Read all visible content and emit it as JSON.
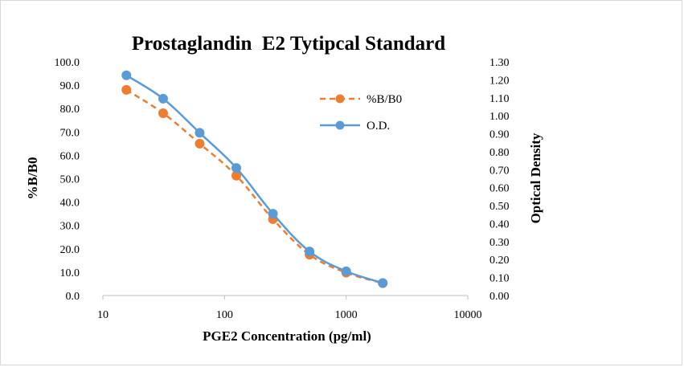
{
  "chart_data": {
    "type": "line",
    "title": "Prostaglandin  E2 Tytipcal Standard",
    "xlabel": "PGE2 Concentration (pg/ml)",
    "ylabel": "%B/B0",
    "y2label": "Optical Density",
    "xscale": "log",
    "xlim": [
      10,
      10000
    ],
    "ylim": [
      0,
      100
    ],
    "y2lim": [
      0,
      1.3
    ],
    "x_ticks": [
      "10",
      "100",
      "1000",
      "10000"
    ],
    "y_ticks": [
      "0.0",
      "10.0",
      "20.0",
      "30.0",
      "40.0",
      "50.0",
      "60.0",
      "70.0",
      "80.0",
      "90.0",
      "100.0"
    ],
    "y2_ticks": [
      "0.00",
      "0.10",
      "0.20",
      "0.30",
      "0.40",
      "0.50",
      "0.60",
      "0.70",
      "0.80",
      "0.90",
      "1.00",
      "1.10",
      "1.20",
      "1.30"
    ],
    "x": [
      15.6,
      31.3,
      62.5,
      125,
      250,
      500,
      1000,
      2000
    ],
    "series": [
      {
        "name": "%B/B0",
        "axis": "left",
        "style": "dashed",
        "color": "#ED7D31",
        "values": [
          88.0,
          78.0,
          65.0,
          51.3,
          32.7,
          17.5,
          9.8,
          5.3
        ]
      },
      {
        "name": "O.D.",
        "axis": "right",
        "style": "solid",
        "color": "#5B9BD5",
        "values": [
          1.225,
          1.095,
          0.905,
          0.71,
          0.455,
          0.245,
          0.135,
          0.07
        ]
      }
    ],
    "legend": "top-right"
  }
}
